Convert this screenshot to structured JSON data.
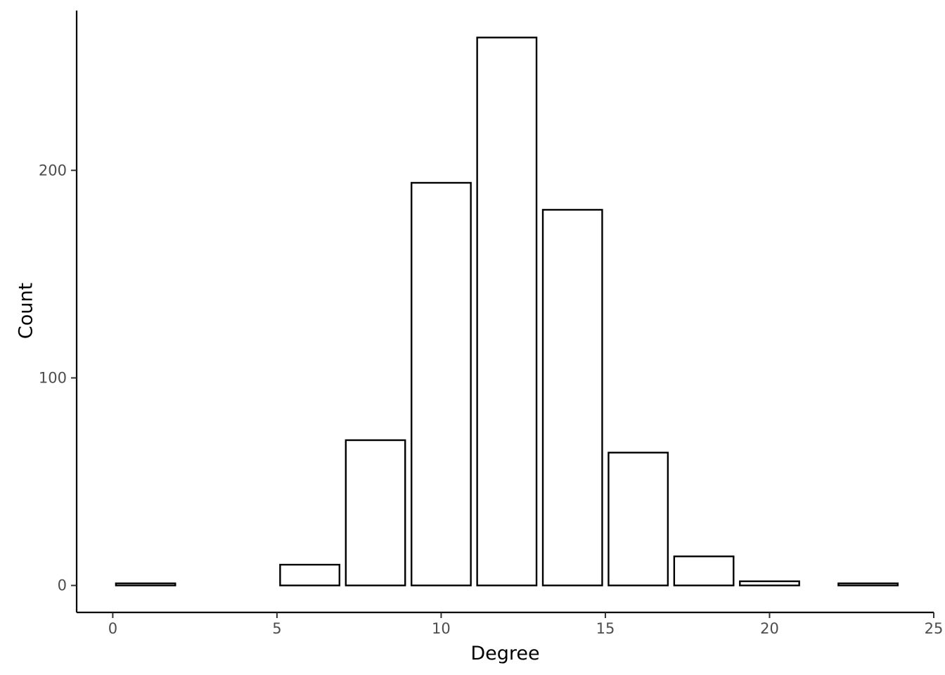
{
  "chart_data": {
    "type": "bar",
    "title": "",
    "xlabel": "Degree",
    "ylabel": "Count",
    "bins": [
      {
        "start": 0,
        "end": 2,
        "count": 1
      },
      {
        "start": 5,
        "end": 7,
        "count": 10
      },
      {
        "start": 7,
        "end": 9,
        "count": 70
      },
      {
        "start": 9,
        "end": 11,
        "count": 194
      },
      {
        "start": 11,
        "end": 13,
        "count": 264
      },
      {
        "start": 13,
        "end": 15,
        "count": 181
      },
      {
        "start": 15,
        "end": 17,
        "count": 64
      },
      {
        "start": 17,
        "end": 19,
        "count": 14
      },
      {
        "start": 19,
        "end": 21,
        "count": 2
      },
      {
        "start": 22,
        "end": 24,
        "count": 1
      }
    ],
    "xlim": [
      -1.1,
      25
    ],
    "ylim": [
      -13,
      277
    ],
    "x_ticks": [
      0,
      5,
      10,
      15,
      20,
      25
    ],
    "x_tick_labels": [
      "0",
      "5",
      "10",
      "15",
      "20",
      "25"
    ],
    "y_ticks": [
      0,
      100,
      200
    ],
    "y_tick_labels": [
      "0",
      "100",
      "200"
    ],
    "grid": false,
    "legend": "none",
    "bar_fill": "#ffffff",
    "bar_stroke": "#000000"
  }
}
